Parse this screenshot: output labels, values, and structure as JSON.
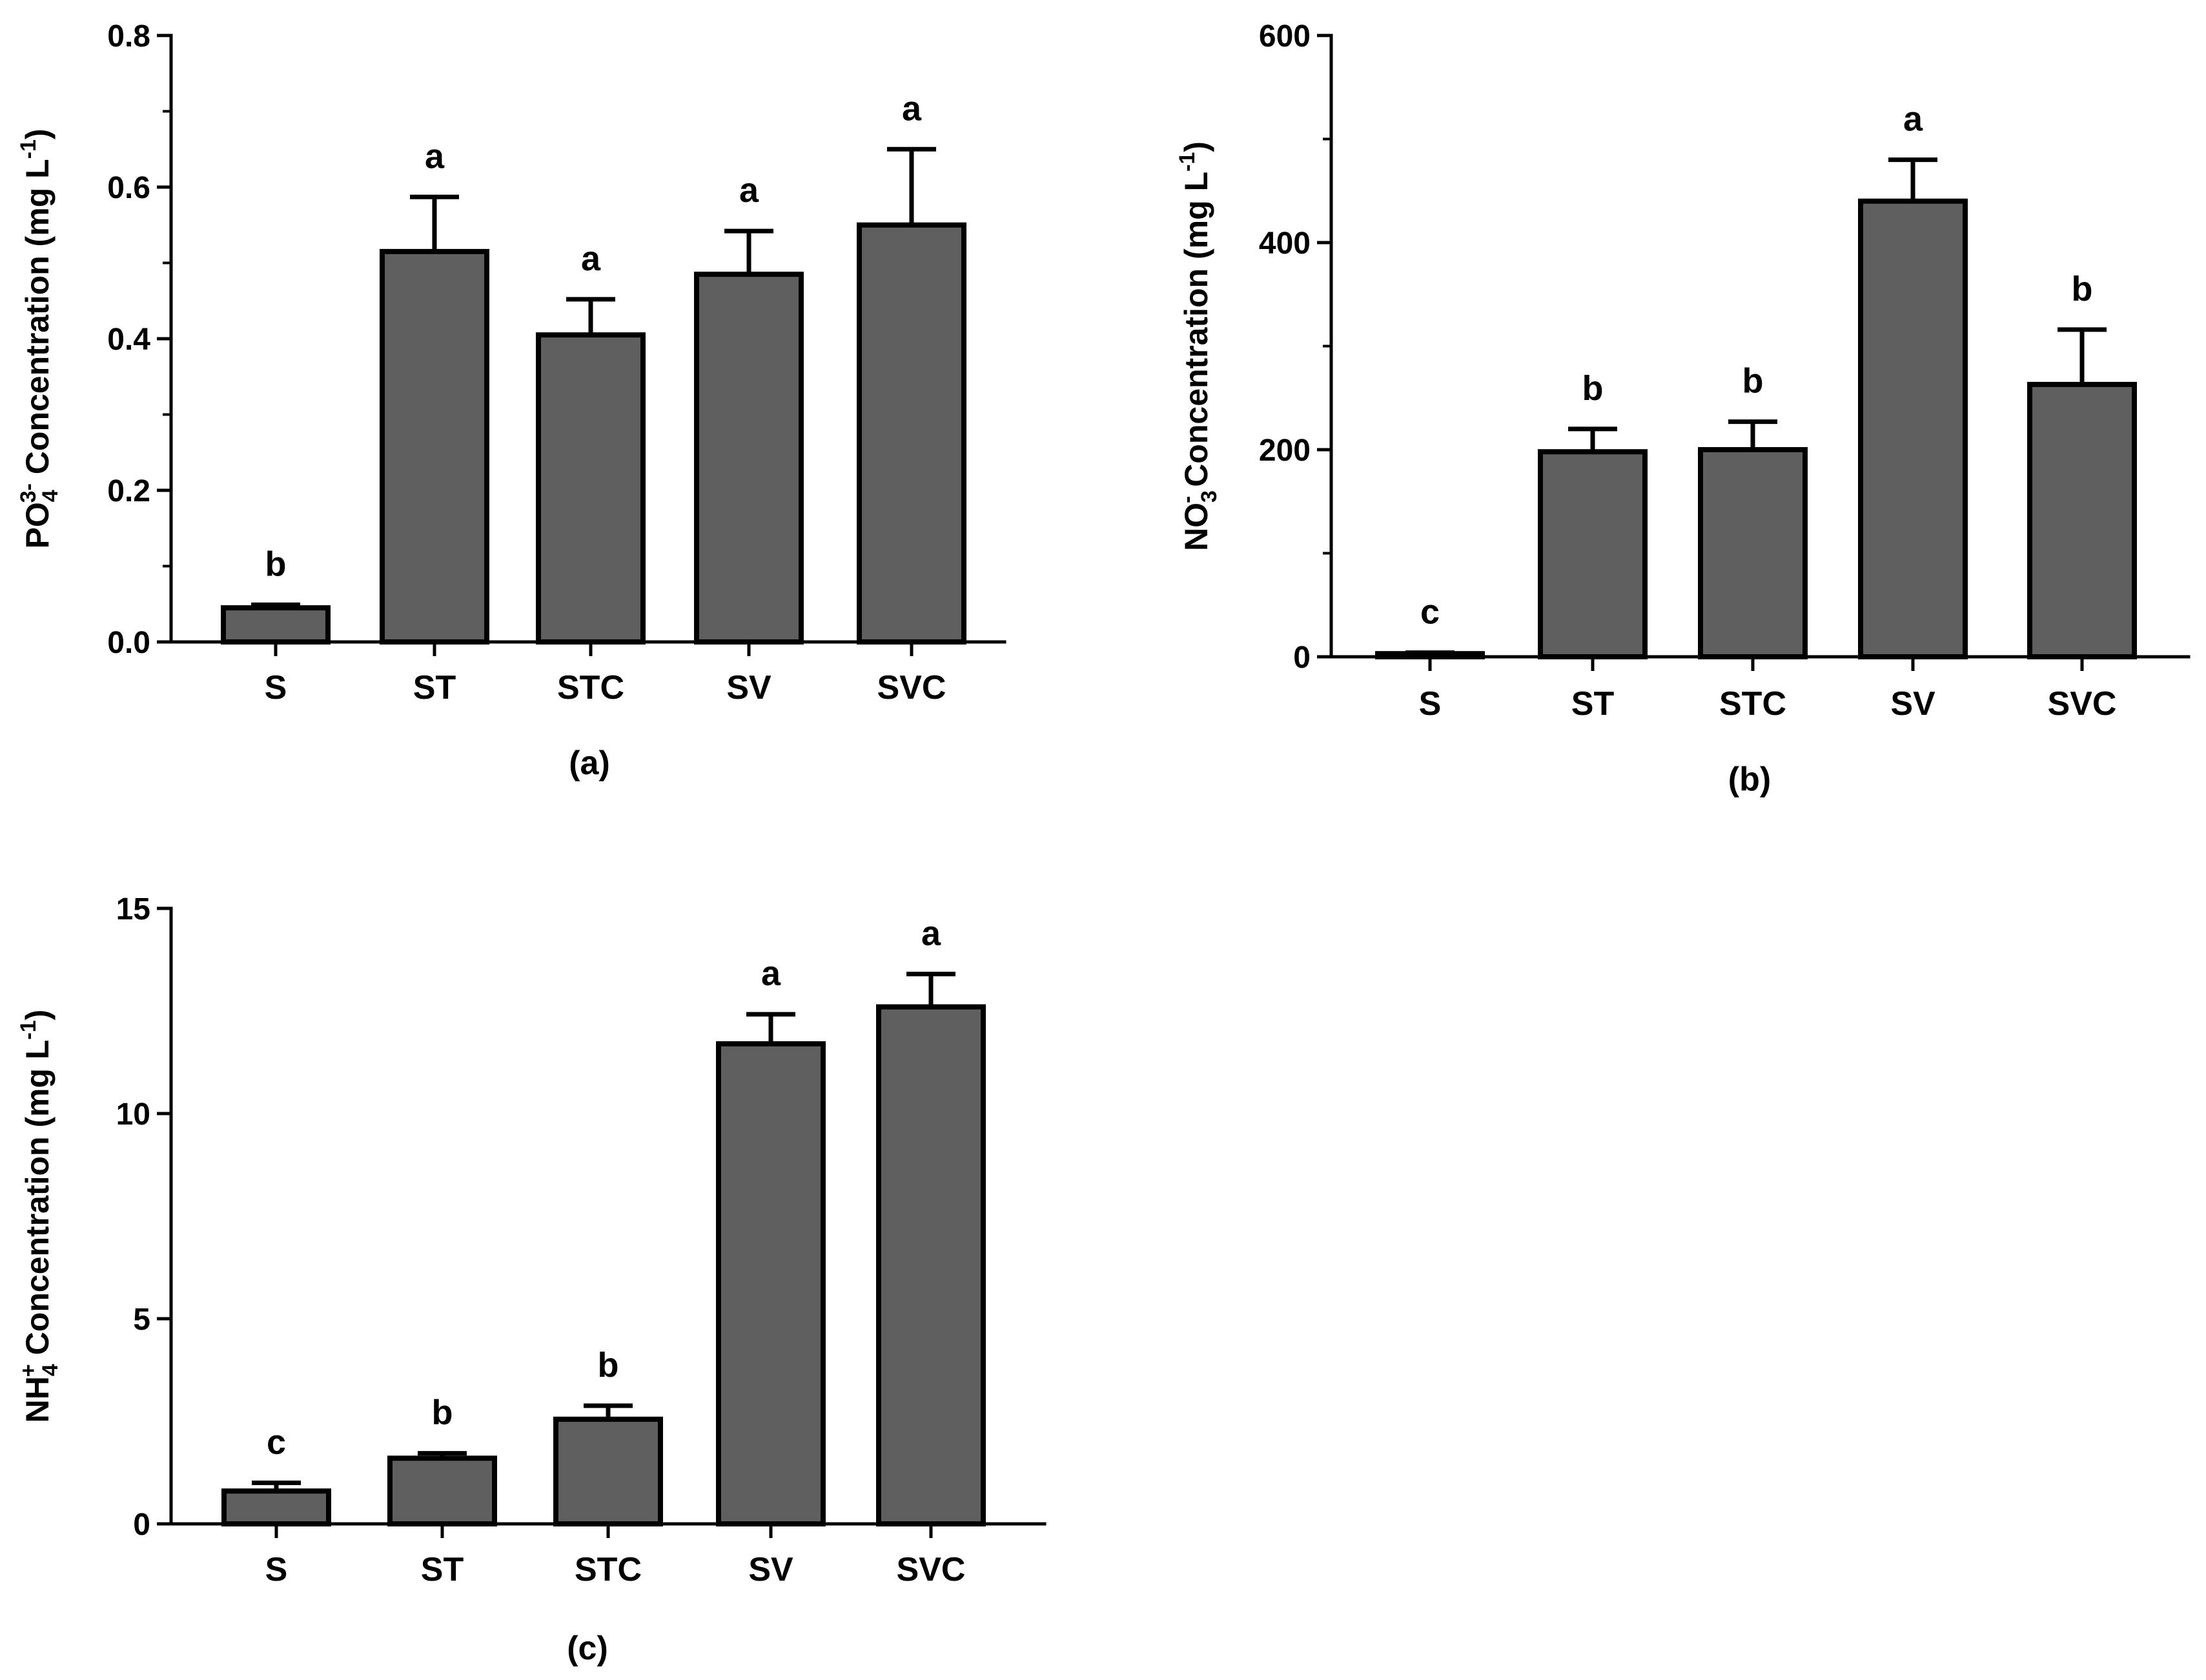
{
  "chart_data": [
    {
      "type": "bar",
      "panel": "(a)",
      "categories": [
        "S",
        "ST",
        "STC",
        "SV",
        "SVC"
      ],
      "values": [
        0.045,
        0.515,
        0.405,
        0.485,
        0.55
      ],
      "errors": [
        0.004,
        0.072,
        0.047,
        0.057,
        0.1
      ],
      "letters": [
        "b",
        "a",
        "a",
        "a",
        "a"
      ],
      "ylabel": {
        "parts": [
          {
            "text": "PO",
            "pos": "normal"
          },
          {
            "text": "4",
            "pos": "sub"
          },
          {
            "text": "3-",
            "pos": "sup"
          },
          {
            "text": " Concentration (mg  L",
            "pos": "normal"
          },
          {
            "text": "-1",
            "pos": "sup"
          },
          {
            "text": ")",
            "pos": "normal"
          }
        ]
      },
      "ylim": [
        0,
        0.8
      ],
      "yticks": [
        0,
        0.2,
        0.4,
        0.6,
        0.8
      ],
      "ytick_labels": [
        "0.0",
        "0.2",
        "0.4",
        "0.6",
        "0.8"
      ],
      "minor_ticks": true
    },
    {
      "type": "bar",
      "panel": "(b)",
      "categories": [
        "S",
        "ST",
        "STC",
        "SV",
        "SVC"
      ],
      "values": [
        3,
        198,
        200,
        440,
        263
      ],
      "errors": [
        1,
        22,
        27,
        40,
        53
      ],
      "letters": [
        "c",
        "b",
        "b",
        "a",
        "b"
      ],
      "ylabel": {
        "parts": [
          {
            "text": "NO",
            "pos": "normal"
          },
          {
            "text": "3",
            "pos": "sub"
          },
          {
            "text": "-",
            "pos": "sup"
          },
          {
            "text": " Concentration  (mg  L",
            "pos": "normal"
          },
          {
            "text": "-1",
            "pos": "sup"
          },
          {
            "text": ")",
            "pos": "normal"
          }
        ]
      },
      "ylim": [
        0,
        600
      ],
      "yticks": [
        0,
        200,
        400,
        600
      ],
      "ytick_labels": [
        "0",
        "200",
        "400",
        "600"
      ],
      "minor_ticks": true
    },
    {
      "type": "bar",
      "panel": "(c)",
      "categories": [
        "S",
        "ST",
        "STC",
        "SV",
        "SVC"
      ],
      "values": [
        0.8,
        1.6,
        2.55,
        11.7,
        12.6
      ],
      "errors": [
        0.2,
        0.12,
        0.33,
        0.72,
        0.8
      ],
      "letters": [
        "c",
        "b",
        "b",
        "a",
        "a"
      ],
      "ylabel": {
        "parts": [
          {
            "text": "NH",
            "pos": "normal"
          },
          {
            "text": "4",
            "pos": "sub"
          },
          {
            "text": "+",
            "pos": "sup"
          },
          {
            "text": " Concentration  (mg L",
            "pos": "normal"
          },
          {
            "text": "-1",
            "pos": "sup"
          },
          {
            "text": ")",
            "pos": "normal"
          }
        ]
      },
      "ylim": [
        0,
        15
      ],
      "yticks": [
        0,
        5,
        10,
        15
      ],
      "ytick_labels": [
        "0",
        "5",
        "10",
        "15"
      ],
      "minor_ticks": false
    }
  ]
}
